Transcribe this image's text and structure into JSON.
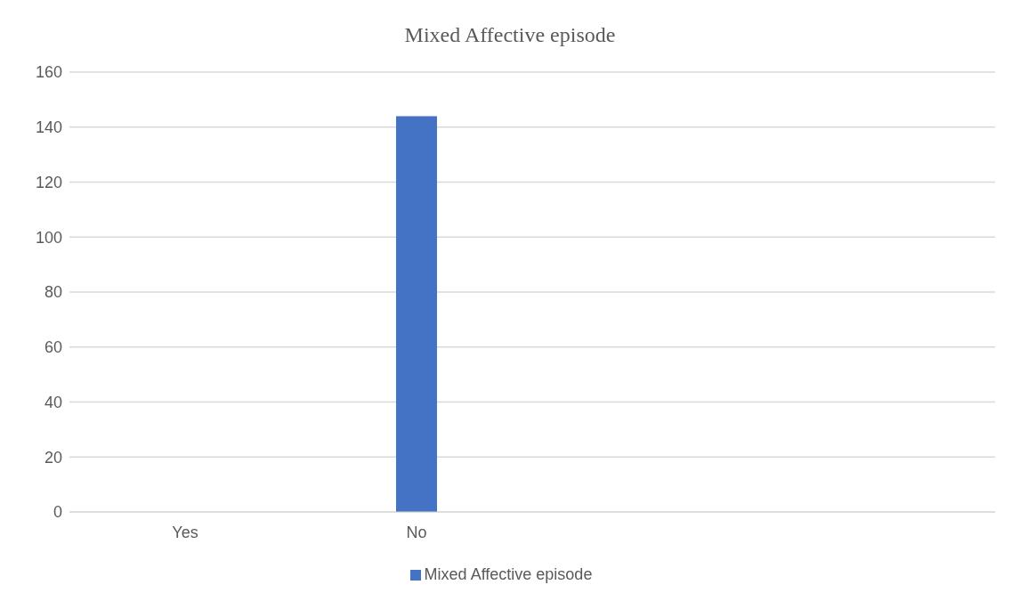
{
  "chart_data": {
    "type": "bar",
    "title": "Mixed Affective episode",
    "categories": [
      "Yes",
      "No",
      null,
      null
    ],
    "series": [
      {
        "name": "Mixed Affective episode",
        "color": "#4472c4",
        "values": [
          0,
          144,
          null,
          null
        ]
      }
    ],
    "ylim": [
      0,
      160
    ],
    "yticks": [
      0,
      20,
      40,
      60,
      80,
      100,
      120,
      140,
      160
    ],
    "grid": "y",
    "legend": "bottom"
  }
}
